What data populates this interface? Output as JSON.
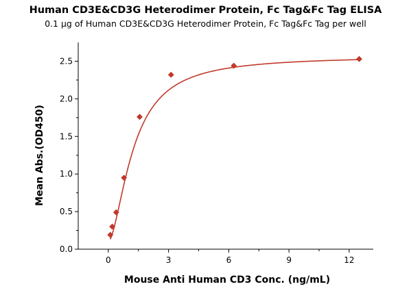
{
  "chart_data": {
    "type": "scatter",
    "title": "Human CD3E&CD3G Heterodimer Protein, Fc Tag&Fc Tag ELISA",
    "subtitle": "0.1 µg of Human CD3E&CD3G Heterodimer Protein, Fc Tag&Fc Tag per well",
    "xlabel": "Mouse Anti Human CD3 Conc. (ng/mL)",
    "ylabel": "Mean Abs.(OD450)",
    "xlim": [
      -1.5,
      13.2
    ],
    "ylim": [
      0.0,
      2.75
    ],
    "xticks": [
      0,
      3,
      6,
      9,
      12
    ],
    "yticks": [
      0.0,
      0.5,
      1.0,
      1.5,
      2.0,
      2.5
    ],
    "xtick_labels": [
      "0",
      "3",
      "6",
      "9",
      "12"
    ],
    "ytick_labels": [
      "0.0",
      "0.5",
      "1.0",
      "1.5",
      "2.0",
      "2.5"
    ],
    "grid": false,
    "series": [
      {
        "marker": "diamond",
        "color": "#c0392b",
        "fit": "sigmoidal",
        "x": [
          0.098,
          0.195,
          0.39,
          0.78,
          1.56,
          3.125,
          6.25,
          12.5
        ],
        "y": [
          0.19,
          0.3,
          0.49,
          0.95,
          1.76,
          2.32,
          2.44,
          2.53
        ]
      }
    ]
  }
}
